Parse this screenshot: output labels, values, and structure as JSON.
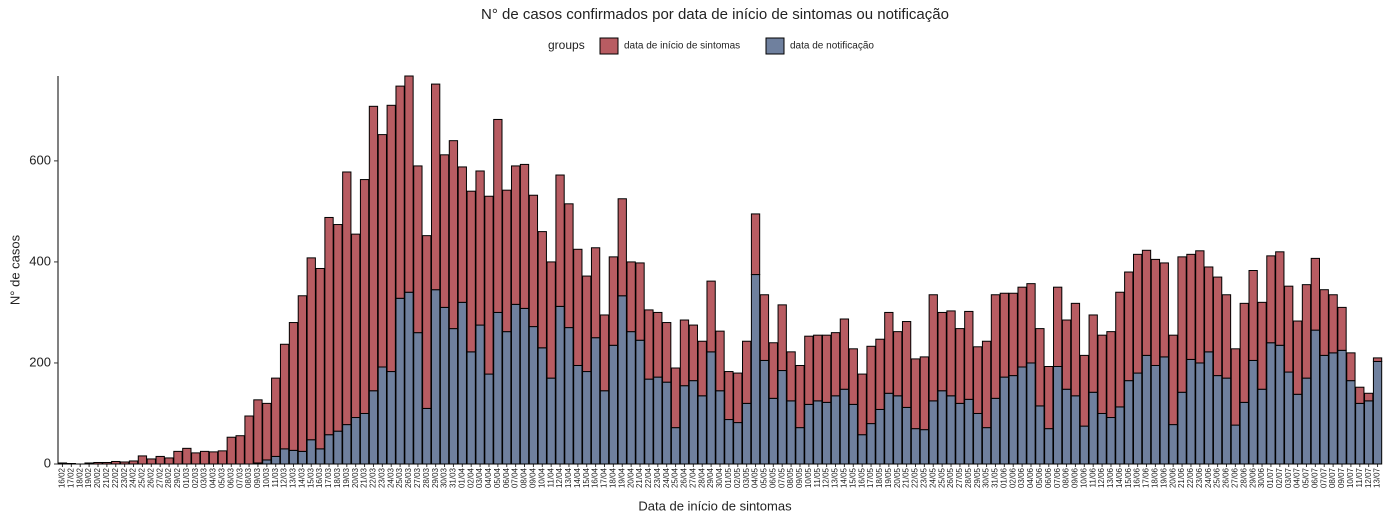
{
  "chart_data": {
    "type": "stacked_bar",
    "title": "N° de casos confirmados por data de início de sintomas ou notificação",
    "x_label": "Data de início de sintomas",
    "y_label": "N° de casos",
    "legend_title": "groups",
    "categories": [
      "16/02",
      "17/02",
      "18/02",
      "19/02",
      "20/02",
      "21/02",
      "22/02",
      "23/02",
      "24/02",
      "25/02",
      "26/02",
      "27/02",
      "28/02",
      "29/02",
      "01/03",
      "02/03",
      "03/03",
      "04/03",
      "05/03",
      "06/03",
      "07/03",
      "08/03",
      "09/03",
      "10/03",
      "11/03",
      "12/03",
      "13/03",
      "14/03",
      "15/03",
      "16/03",
      "17/03",
      "18/03",
      "19/03",
      "20/03",
      "21/03",
      "22/03",
      "23/03",
      "24/03",
      "25/03",
      "26/03",
      "27/03",
      "28/03",
      "29/03",
      "30/03",
      "31/03",
      "01/04",
      "02/04",
      "03/04",
      "04/04",
      "05/04",
      "06/04",
      "07/04",
      "08/04",
      "09/04",
      "10/04",
      "11/04",
      "12/04",
      "13/04",
      "14/04",
      "15/04",
      "16/04",
      "17/04",
      "18/04",
      "19/04",
      "20/04",
      "21/04",
      "22/04",
      "23/04",
      "24/04",
      "25/04",
      "26/04",
      "27/04",
      "28/04",
      "29/04",
      "30/04",
      "01/05",
      "02/05",
      "03/05",
      "04/05",
      "05/05",
      "06/05",
      "07/05",
      "08/05",
      "09/05",
      "10/05",
      "11/05",
      "12/05",
      "13/05",
      "14/05",
      "15/05",
      "16/05",
      "17/05",
      "18/05",
      "19/05",
      "20/05",
      "21/05",
      "22/05",
      "23/05",
      "24/05",
      "25/05",
      "26/05",
      "27/05",
      "28/05",
      "29/05",
      "30/05",
      "31/05",
      "01/06",
      "02/06",
      "03/06",
      "04/06",
      "05/06",
      "06/06",
      "07/06",
      "08/06",
      "09/06",
      "10/06",
      "11/06",
      "12/06",
      "13/06",
      "14/06",
      "15/06",
      "16/06",
      "17/06",
      "18/06",
      "19/06",
      "20/06",
      "21/06",
      "22/06",
      "23/06",
      "24/06",
      "25/06",
      "26/06",
      "27/06",
      "28/06",
      "29/06",
      "30/06",
      "01/07",
      "02/07",
      "03/07",
      "04/07",
      "05/07",
      "06/07",
      "07/07",
      "08/07",
      "09/07",
      "10/07",
      "11/07",
      "12/07",
      "13/07"
    ],
    "series": [
      {
        "name": "data de início de sintomas",
        "color": "#b85c62",
        "values": [
          2,
          1,
          0,
          2,
          3,
          3,
          5,
          4,
          6,
          16,
          10,
          15,
          12,
          25,
          31,
          22,
          25,
          24,
          26,
          53,
          56,
          95,
          125,
          112,
          155,
          207,
          253,
          308,
          360,
          357,
          430,
          409,
          500,
          363,
          463,
          563,
          460,
          527,
          420,
          428,
          330,
          342,
          407,
          302,
          372,
          268,
          318,
          305,
          352,
          382,
          280,
          274,
          285,
          260,
          230,
          230,
          260,
          245,
          230,
          189,
          178,
          150,
          175,
          192,
          138,
          153,
          137,
          128,
          118,
          118,
          130,
          110,
          108,
          140,
          118,
          95,
          98,
          123,
          120,
          130,
          110,
          130,
          97,
          123,
          135,
          130,
          133,
          125,
          139,
          110,
          120,
          153,
          139,
          160,
          127,
          170,
          138,
          144,
          210,
          155,
          168,
          148,
          174,
          132,
          171,
          205,
          166,
          163,
          158,
          157,
          153,
          123,
          157,
          137,
          183,
          140,
          153,
          155,
          170,
          227,
          215,
          235,
          208,
          210,
          186,
          177,
          268,
          208,
          222,
          168,
          195,
          165,
          151,
          196,
          178,
          172,
          172,
          185,
          170,
          145,
          185,
          142,
          130,
          115,
          85,
          55,
          32,
          15,
          7
        ]
      },
      {
        "name": "data de notificação",
        "color": "#6f809e",
        "values": [
          0,
          0,
          0,
          0,
          0,
          0,
          0,
          0,
          0,
          0,
          0,
          0,
          0,
          0,
          0,
          0,
          0,
          0,
          0,
          0,
          0,
          0,
          2,
          8,
          15,
          30,
          27,
          25,
          48,
          30,
          58,
          65,
          78,
          92,
          100,
          145,
          192,
          183,
          328,
          340,
          260,
          110,
          345,
          310,
          268,
          320,
          222,
          275,
          178,
          300,
          262,
          316,
          308,
          272,
          230,
          170,
          312,
          270,
          195,
          183,
          250,
          145,
          235,
          333,
          262,
          245,
          168,
          172,
          162,
          72,
          155,
          165,
          135,
          222,
          145,
          88,
          82,
          120,
          375,
          205,
          130,
          185,
          125,
          72,
          118,
          125,
          122,
          135,
          148,
          118,
          58,
          80,
          108,
          140,
          135,
          112,
          70,
          68,
          125,
          145,
          135,
          120,
          128,
          100,
          72,
          130,
          172,
          175,
          192,
          200,
          115,
          70,
          193,
          148,
          135,
          75,
          142,
          100,
          92,
          113,
          165,
          180,
          215,
          195,
          212,
          78,
          142,
          207,
          200,
          222,
          175,
          170,
          77,
          122,
          205,
          148,
          240,
          235,
          182,
          138,
          170,
          265,
          215,
          220,
          225,
          165,
          120,
          125,
          203
        ]
      }
    ],
    "ylim": [
      0,
      768
    ],
    "yticks": [
      0,
      200,
      400,
      600
    ],
    "grid": false,
    "legend_position": "top"
  }
}
